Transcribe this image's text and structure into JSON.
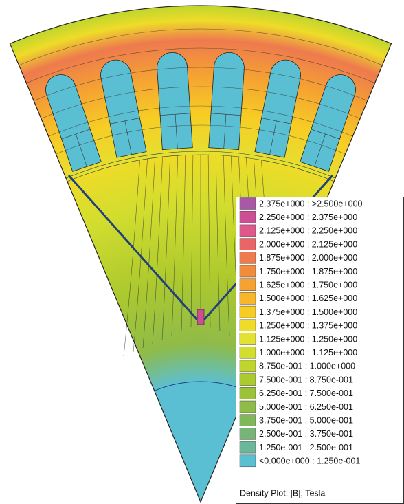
{
  "legend": {
    "title": "Density Plot: |B|, Tesla",
    "rows": [
      {
        "label": "2.375e+000 : >2.500e+000",
        "color": "#a958a5"
      },
      {
        "label": "2.250e+000 : 2.375e+000",
        "color": "#cc4f93"
      },
      {
        "label": "2.125e+000 : 2.250e+000",
        "color": "#e0578a"
      },
      {
        "label": "2.000e+000 : 2.125e+000",
        "color": "#ea6565"
      },
      {
        "label": "1.875e+000 : 2.000e+000",
        "color": "#ee7a4e"
      },
      {
        "label": "1.750e+000 : 1.875e+000",
        "color": "#f08c3c"
      },
      {
        "label": "1.625e+000 : 1.750e+000",
        "color": "#f5a232"
      },
      {
        "label": "1.500e+000 : 1.625e+000",
        "color": "#f8b62a"
      },
      {
        "label": "1.375e+000 : 1.500e+000",
        "color": "#f7cd24"
      },
      {
        "label": "1.250e+000 : 1.375e+000",
        "color": "#eedc28"
      },
      {
        "label": "1.125e+000 : 1.250e+000",
        "color": "#e3e232"
      },
      {
        "label": "1.000e+000 : 1.125e+000",
        "color": "#d2dd2e"
      },
      {
        "label": "8.750e-001 : 1.000e+000",
        "color": "#bfd52e"
      },
      {
        "label": "7.500e-001 : 8.750e-001",
        "color": "#acc92e"
      },
      {
        "label": "6.250e-001 : 7.500e-001",
        "color": "#9cc23a"
      },
      {
        "label": "5.000e-001 : 6.250e-001",
        "color": "#8fbb48"
      },
      {
        "label": "3.750e-001 : 5.000e-001",
        "color": "#82b65a"
      },
      {
        "label": "2.500e-001 : 3.750e-001",
        "color": "#76b478"
      },
      {
        "label": "1.250e-001 : 2.500e-001",
        "color": "#6cb69a"
      },
      {
        "label": "<0.000e+000 : 1.250e-001",
        "color": "#5bbfd4"
      }
    ]
  }
}
